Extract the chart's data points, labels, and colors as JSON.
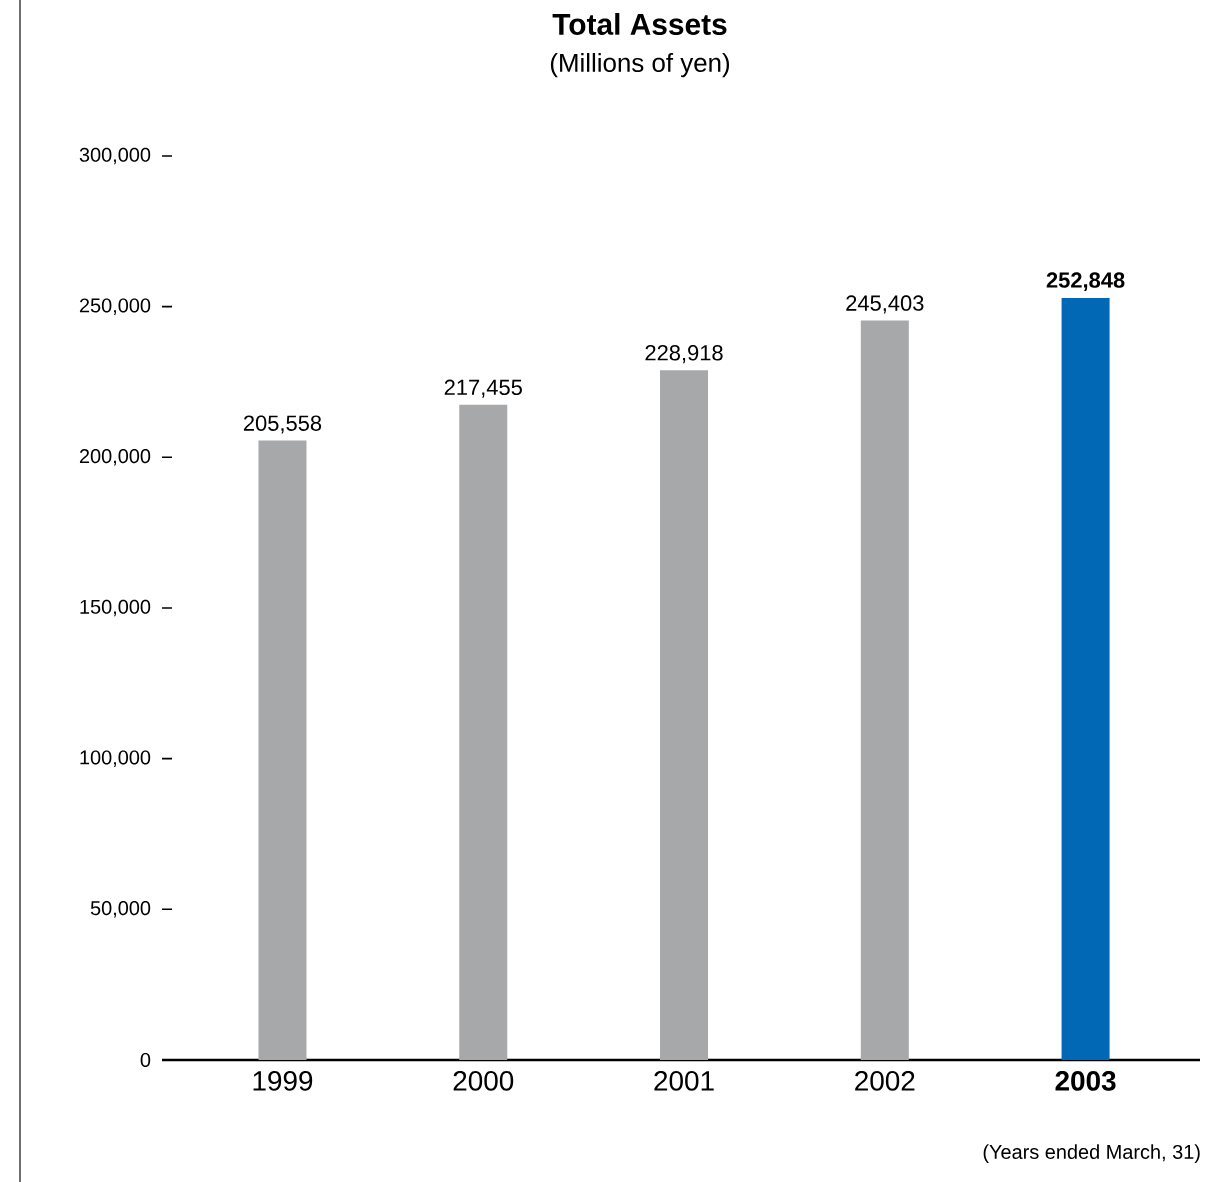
{
  "chart_data": {
    "type": "bar",
    "title": "Total Assets",
    "subtitle": "(Millions of yen)",
    "categories": [
      "1999",
      "2000",
      "2001",
      "2002",
      "2003"
    ],
    "values": [
      205558,
      217455,
      228918,
      245403,
      252848
    ],
    "colors": [
      "#a7a8aa",
      "#a7a8aa",
      "#a7a8aa",
      "#a7a8aa",
      "#0068b4"
    ],
    "value_labels": [
      "205,558",
      "217,455",
      "228,918",
      "245,403",
      "252,848"
    ],
    "ylim": [
      0,
      300000
    ],
    "yticks": [
      {
        "value": 0,
        "label": "0"
      },
      {
        "value": 50000,
        "label": "50,000"
      },
      {
        "value": 100000,
        "label": "100,000"
      },
      {
        "value": 150000,
        "label": "150,000"
      },
      {
        "value": 200000,
        "label": "200,000"
      },
      {
        "value": 250000,
        "label": "250,000"
      },
      {
        "value": 300000,
        "label": "300,000"
      }
    ],
    "annotations": [
      "(Years ended March, 31)"
    ],
    "grid": false
  }
}
